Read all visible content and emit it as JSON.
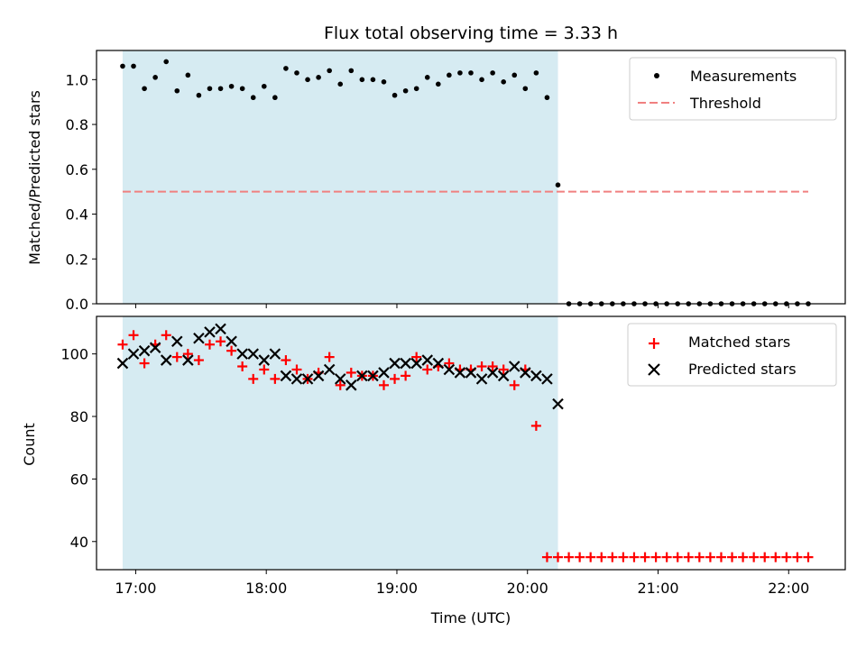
{
  "chart_data": [
    {
      "type": "scatter",
      "title": "Flux total observing time = 3.33 h",
      "ylabel": "Matched/Predicted stars",
      "xlabel": "",
      "ylim": [
        0,
        1.13
      ],
      "xlim": [
        "16:42",
        "22:26"
      ],
      "yticks": [
        "0.0",
        "0.2",
        "0.4",
        "0.6",
        "0.8",
        "1.0"
      ],
      "yticks_values": [
        0,
        0.2,
        0.4,
        0.6,
        0.8,
        1.0
      ],
      "highlight_span": [
        "16:54",
        "20:14"
      ],
      "highlight_color": "#add8e6",
      "legend_position": "upper right",
      "series": [
        {
          "name": "Measurements",
          "style": "dot",
          "color": "#000000",
          "x": [
            "16:54",
            "16:59",
            "17:04",
            "17:09",
            "17:14",
            "17:19",
            "17:24",
            "17:29",
            "17:34",
            "17:39",
            "17:44",
            "17:49",
            "17:54",
            "17:59",
            "18:04",
            "18:09",
            "18:14",
            "18:19",
            "18:24",
            "18:29",
            "18:34",
            "18:39",
            "18:44",
            "18:49",
            "18:54",
            "18:59",
            "19:04",
            "19:09",
            "19:14",
            "19:19",
            "19:24",
            "19:29",
            "19:34",
            "19:39",
            "19:44",
            "19:49",
            "19:54",
            "19:59",
            "20:04",
            "20:09",
            "20:14",
            "20:19",
            "20:24",
            "20:29",
            "20:34",
            "20:39",
            "20:44",
            "20:49",
            "20:54",
            "20:59",
            "21:04",
            "21:09",
            "21:14",
            "21:19",
            "21:24",
            "21:29",
            "21:34",
            "21:39",
            "21:44",
            "21:49",
            "21:54",
            "21:59",
            "22:04",
            "22:09"
          ],
          "y": [
            1.06,
            1.06,
            0.96,
            1.01,
            1.08,
            0.95,
            1.02,
            0.93,
            0.96,
            0.96,
            0.97,
            0.96,
            0.92,
            0.97,
            0.92,
            1.05,
            1.03,
            1.0,
            1.01,
            1.04,
            0.98,
            1.04,
            1.0,
            1.0,
            0.99,
            0.93,
            0.95,
            0.96,
            1.01,
            0.98,
            1.02,
            1.03,
            1.03,
            1.0,
            1.03,
            0.99,
            1.02,
            0.96,
            1.03,
            0.92,
            0.53,
            0.0,
            0.0,
            0.0,
            0.0,
            0.0,
            0.0,
            0.0,
            0.0,
            0.0,
            0.0,
            0.0,
            0.0,
            0.0,
            0.0,
            0.0,
            0.0,
            0.0,
            0.0,
            0.0,
            0.0,
            0.0,
            0.0,
            0.0
          ]
        },
        {
          "name": "Threshold",
          "style": "dashed-line",
          "color": "#f08080",
          "x": [
            "16:54",
            "22:09"
          ],
          "y": [
            0.5,
            0.5
          ]
        }
      ]
    },
    {
      "type": "scatter",
      "title": "",
      "ylabel": "Count",
      "xlabel": "Time (UTC)",
      "ylim": [
        31,
        112
      ],
      "xlim": [
        "16:42",
        "22:26"
      ],
      "yticks": [
        "40",
        "60",
        "80",
        "100"
      ],
      "yticks_values": [
        40,
        60,
        80,
        100
      ],
      "xticks": [
        "17:00",
        "18:00",
        "19:00",
        "20:00",
        "21:00",
        "22:00"
      ],
      "xticks_values": [
        "17:00",
        "18:00",
        "19:00",
        "20:00",
        "21:00",
        "22:00"
      ],
      "highlight_span": [
        "16:54",
        "20:14"
      ],
      "highlight_color": "#add8e6",
      "legend_position": "upper right",
      "series": [
        {
          "name": "Matched stars",
          "style": "plus",
          "color": "#ff0000",
          "x": [
            "16:54",
            "16:59",
            "17:04",
            "17:09",
            "17:14",
            "17:19",
            "17:24",
            "17:29",
            "17:34",
            "17:39",
            "17:44",
            "17:49",
            "17:54",
            "17:59",
            "18:04",
            "18:09",
            "18:14",
            "18:19",
            "18:24",
            "18:29",
            "18:34",
            "18:39",
            "18:44",
            "18:49",
            "18:54",
            "18:59",
            "19:04",
            "19:09",
            "19:14",
            "19:19",
            "19:24",
            "19:29",
            "19:34",
            "19:39",
            "19:44",
            "19:49",
            "19:54",
            "19:59",
            "20:04",
            "20:09",
            "20:14",
            "20:19",
            "20:24",
            "20:29",
            "20:34",
            "20:39",
            "20:44",
            "20:49",
            "20:54",
            "20:59",
            "21:04",
            "21:09",
            "21:14",
            "21:19",
            "21:24",
            "21:29",
            "21:34",
            "21:39",
            "21:44",
            "21:49",
            "21:54",
            "21:59",
            "22:04",
            "22:09"
          ],
          "y": [
            103,
            106,
            97,
            103,
            106,
            99,
            100,
            98,
            103,
            104,
            101,
            96,
            92,
            95,
            92,
            98,
            95,
            92,
            94,
            99,
            90,
            94,
            93,
            93,
            90,
            92,
            93,
            99,
            95,
            96,
            97,
            95,
            95,
            96,
            96,
            95,
            90,
            95,
            77,
            35,
            35,
            35,
            35,
            35,
            35,
            35,
            35,
            35,
            35,
            35,
            35,
            35,
            35,
            35,
            35,
            35,
            35,
            35,
            35,
            35,
            35,
            35,
            35,
            35
          ]
        },
        {
          "name": "Predicted stars",
          "style": "x",
          "color": "#000000",
          "x": [
            "16:54",
            "16:59",
            "17:04",
            "17:09",
            "17:14",
            "17:19",
            "17:24",
            "17:29",
            "17:34",
            "17:39",
            "17:44",
            "17:49",
            "17:54",
            "17:59",
            "18:04",
            "18:09",
            "18:14",
            "18:19",
            "18:24",
            "18:29",
            "18:34",
            "18:39",
            "18:44",
            "18:49",
            "18:54",
            "18:59",
            "19:04",
            "19:09",
            "19:14",
            "19:19",
            "19:24",
            "19:29",
            "19:34",
            "19:39",
            "19:44",
            "19:49",
            "19:54",
            "19:59",
            "20:04",
            "20:09",
            "20:14"
          ],
          "y": [
            97,
            100,
            101,
            102,
            98,
            104,
            98,
            105,
            107,
            108,
            104,
            100,
            100,
            98,
            100,
            93,
            92,
            92,
            93,
            95,
            92,
            90,
            93,
            93,
            94,
            97,
            97,
            97,
            98,
            97,
            95,
            94,
            94,
            92,
            94,
            93,
            96,
            94,
            93,
            92,
            84
          ]
        }
      ]
    }
  ]
}
